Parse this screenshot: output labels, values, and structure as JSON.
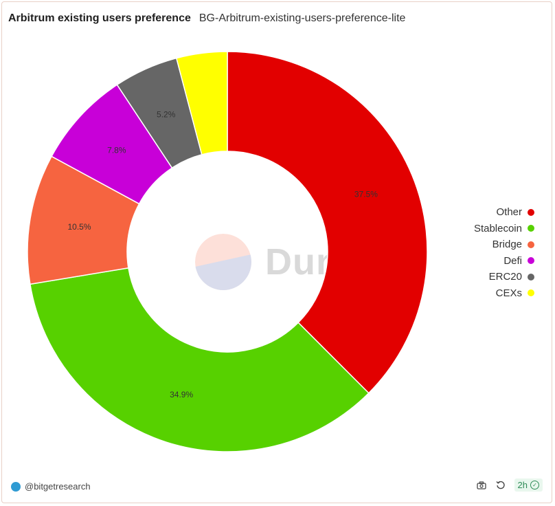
{
  "header": {
    "title": "Arbitrum existing users preference",
    "subtitle": "BG-Arbitrum-existing-users-preference-lite"
  },
  "chart_data": {
    "type": "pie",
    "donut": true,
    "title": "Arbitrum existing users preference",
    "categories": [
      "Other",
      "Stablecoin",
      "Bridge",
      "Defi",
      "ERC20",
      "CEXs"
    ],
    "values": [
      37.5,
      34.9,
      10.5,
      7.8,
      5.2,
      4.1
    ],
    "labels": [
      "37.5%",
      "34.9%",
      "10.5%",
      "7.8%",
      "5.2%",
      ""
    ],
    "colors": [
      "#e20000",
      "#57d100",
      "#f66440",
      "#c800d8",
      "#666666",
      "#ffff00"
    ],
    "legend_position": "right"
  },
  "watermark": {
    "text": "Dune"
  },
  "footer": {
    "author": "@bitgetresearch",
    "refresh": "2h",
    "camera_icon": "camera-icon",
    "reload_icon": "reload-icon"
  }
}
